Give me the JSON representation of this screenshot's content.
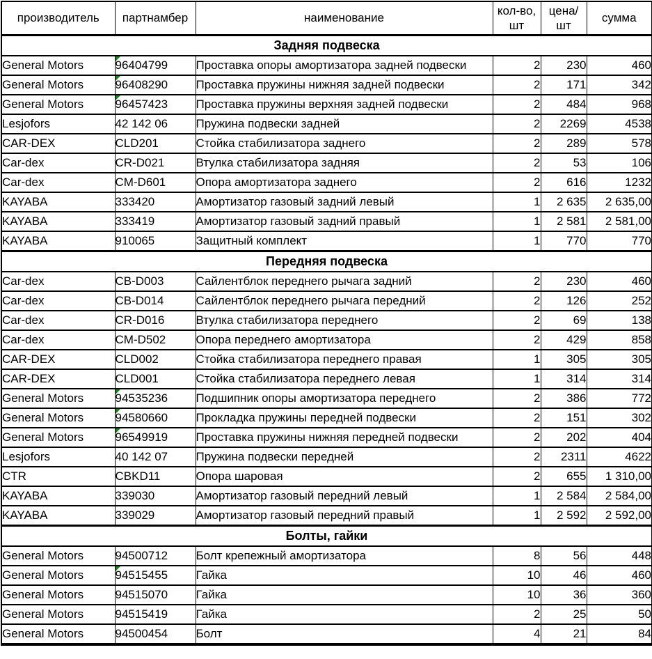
{
  "meta": {
    "colors": {
      "grid_border": "#000000",
      "text": "#000000",
      "background": "#ffffff",
      "text_format_marker_green": "#1e7d1e"
    }
  },
  "table": {
    "columns": [
      {
        "key": "manufacturer",
        "label": "производитель"
      },
      {
        "key": "partnumber",
        "label": "партнамбер"
      },
      {
        "key": "name",
        "label": "наименование"
      },
      {
        "key": "qty",
        "label": "кол-во,\nшт"
      },
      {
        "key": "price",
        "label": "цена/\nшт"
      },
      {
        "key": "sum",
        "label": "сумма"
      }
    ],
    "sections": [
      {
        "title": "Задняя подвеска",
        "rows": [
          {
            "manufacturer": "General Motors",
            "partnumber": "96404799",
            "name": "Проставка опоры амортизатора задней подвески",
            "qty": "2",
            "price": "230",
            "sum": "460",
            "marker": true
          },
          {
            "manufacturer": "General Motors",
            "partnumber": "96408290",
            "name": "Проставка пружины нижняя задней подвески",
            "qty": "2",
            "price": "171",
            "sum": "342",
            "marker": true
          },
          {
            "manufacturer": "General Motors",
            "partnumber": "96457423",
            "name": "Проставка пружины верхняя задней подвески",
            "qty": "2",
            "price": "484",
            "sum": "968",
            "marker": true
          },
          {
            "manufacturer": "Lesjofors",
            "partnumber": "42 142 06",
            "name": "Пружина подвески задней",
            "qty": "2",
            "price": "2269",
            "sum": "4538",
            "marker": false
          },
          {
            "manufacturer": "CAR-DEX",
            "partnumber": "CLD201",
            "name": "Стойка стабилизатора заднего",
            "qty": "2",
            "price": "289",
            "sum": "578",
            "marker": false
          },
          {
            "manufacturer": "Car-dex",
            "partnumber": "CR-D021",
            "name": "Втулка стабилизатора задняя",
            "qty": "2",
            "price": "53",
            "sum": "106",
            "marker": false
          },
          {
            "manufacturer": "Car-dex",
            "partnumber": "CM-D601",
            "name": "Опора амортизатора заднего",
            "qty": "2",
            "price": "616",
            "sum": "1232",
            "marker": false
          },
          {
            "manufacturer": "KAYABA",
            "partnumber": "333420",
            "name": "Амортизатор газовый задний левый",
            "qty": "1",
            "price": "2 635",
            "sum": "2 635,00",
            "marker": false
          },
          {
            "manufacturer": "KAYABA",
            "partnumber": "333419",
            "name": "Амортизатор газовый задний правый",
            "qty": "1",
            "price": "2 581",
            "sum": "2 581,00",
            "marker": false
          },
          {
            "manufacturer": "KAYABA",
            "partnumber": "910065",
            "name": "Защитный комплект",
            "qty": "1",
            "price": "770",
            "sum": "770",
            "marker": false
          }
        ]
      },
      {
        "title": "Передняя подвеска",
        "rows": [
          {
            "manufacturer": "Car-dex",
            "partnumber": "CB-D003",
            "name": "Сайлентблок переднего рычага задний",
            "qty": "2",
            "price": "230",
            "sum": "460",
            "marker": false
          },
          {
            "manufacturer": "Car-dex",
            "partnumber": "CB-D014",
            "name": "Сайлентблок переднего рычага передний",
            "qty": "2",
            "price": "126",
            "sum": "252",
            "marker": false
          },
          {
            "manufacturer": "Car-dex",
            "partnumber": "CR-D016",
            "name": "Втулка стабилизатора переднего",
            "qty": "2",
            "price": "69",
            "sum": "138",
            "marker": false
          },
          {
            "manufacturer": "Car-dex",
            "partnumber": "CM-D502",
            "name": "Опора переднего амортизатора",
            "qty": "2",
            "price": "429",
            "sum": "858",
            "marker": false
          },
          {
            "manufacturer": "CAR-DEX",
            "partnumber": "CLD002",
            "name": "Стойка стабилизатора переднего правая",
            "qty": "1",
            "price": "305",
            "sum": "305",
            "marker": false
          },
          {
            "manufacturer": "CAR-DEX",
            "partnumber": "CLD001",
            "name": "Стойка стабилизатора переднего левая",
            "qty": "1",
            "price": "314",
            "sum": "314",
            "marker": false
          },
          {
            "manufacturer": "General Motors",
            "partnumber": "94535236",
            "name": "Подшипник опоры амортизатора переднего",
            "qty": "2",
            "price": "386",
            "sum": "772",
            "marker": true
          },
          {
            "manufacturer": "General Motors",
            "partnumber": "94580660",
            "name": "Прокладка пружины передней подвески",
            "qty": "2",
            "price": "151",
            "sum": "302",
            "marker": true
          },
          {
            "manufacturer": "General Motors",
            "partnumber": "96549919",
            "name": "Проставка пружины нижняя передней подвески",
            "qty": "2",
            "price": "202",
            "sum": "404",
            "marker": true
          },
          {
            "manufacturer": "Lesjofors",
            "partnumber": "40 142 07",
            "name": "Пружина подвески передней",
            "qty": "2",
            "price": "2311",
            "sum": "4622",
            "marker": false
          },
          {
            "manufacturer": "CTR",
            "partnumber": "CBKD11",
            "name": "Опора шаровая",
            "qty": "2",
            "price": "655",
            "sum": "1 310,00",
            "marker": false
          },
          {
            "manufacturer": "KAYABA",
            "partnumber": "339030",
            "name": "Амортизатор газовый передний левый",
            "qty": "1",
            "price": "2 584",
            "sum": "2 584,00",
            "marker": false
          },
          {
            "manufacturer": "KAYABA",
            "partnumber": "339029",
            "name": "Амортизатор газовый передний правый",
            "qty": "1",
            "price": "2 592",
            "sum": "2 592,00",
            "marker": false
          }
        ]
      },
      {
        "title": "Болты, гайки",
        "rows": [
          {
            "manufacturer": "General Motors",
            "partnumber": "94500712",
            "name": "Болт крепежный амортизатора",
            "qty": "8",
            "price": "56",
            "sum": "448",
            "marker": false
          },
          {
            "manufacturer": "General Motors",
            "partnumber": "94515455",
            "name": "Гайка",
            "qty": "10",
            "price": "46",
            "sum": "460",
            "marker": true
          },
          {
            "manufacturer": "General Motors",
            "partnumber": "94515070",
            "name": "Гайка",
            "qty": "10",
            "price": "36",
            "sum": "360",
            "marker": false
          },
          {
            "manufacturer": "General Motors",
            "partnumber": "94515419",
            "name": "Гайка",
            "qty": "2",
            "price": "25",
            "sum": "50",
            "marker": false
          },
          {
            "manufacturer": "General Motors",
            "partnumber": "94500454",
            "name": "Болт",
            "qty": "4",
            "price": "21",
            "sum": "84",
            "marker": false
          }
        ]
      }
    ]
  }
}
